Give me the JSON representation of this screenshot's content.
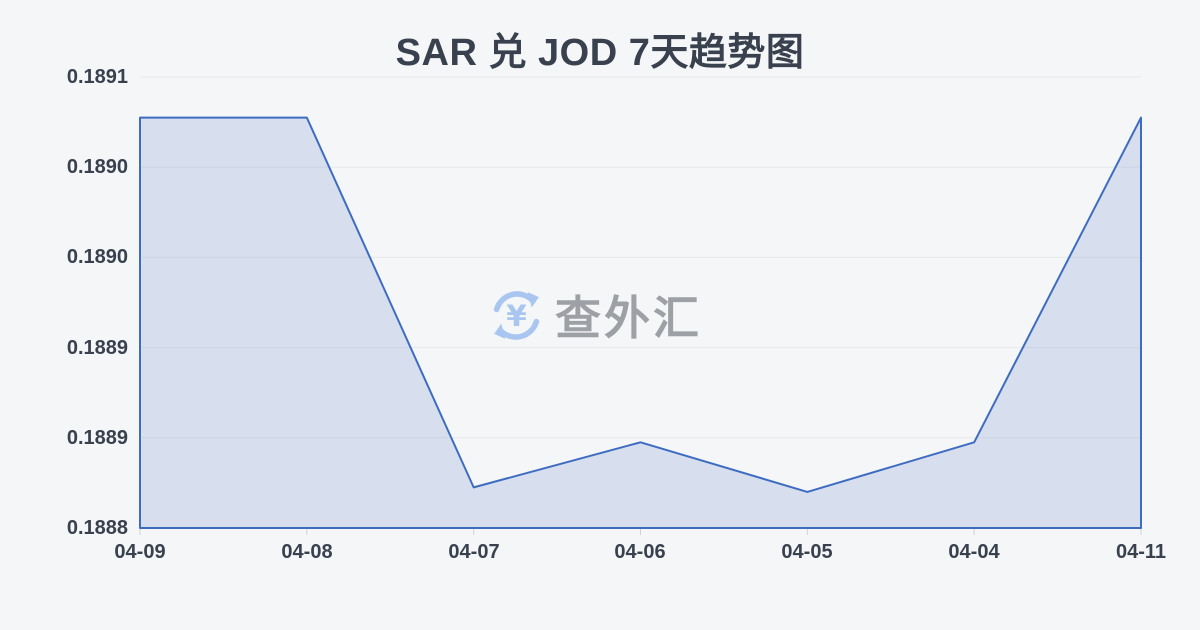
{
  "title": "SAR 兑 JOD 7天趋势图",
  "watermark": {
    "text": "查外汇",
    "icon": "currency-exchange-icon"
  },
  "colors": {
    "background": "#f5f6f8",
    "line": "#3e6cc0",
    "fill": "rgba(62,108,193,0.16)",
    "grid": "#e6e8eb",
    "tick": "#cfd2d8",
    "text_dark": "#39414f",
    "watermark_text": "#9da0a5",
    "watermark_icon": "#a9c6f0"
  },
  "chart_data": {
    "type": "area",
    "title": "SAR 兑 JOD 7天趋势图",
    "categories": [
      "04-09",
      "04-08",
      "04-07",
      "04-06",
      "04-05",
      "04-04",
      "04-11"
    ],
    "values": [
      0.189073,
      0.189073,
      0.188827,
      0.188857,
      0.188824,
      0.188857,
      0.189073
    ],
    "ylim": [
      0.1888,
      0.1891
    ],
    "y_tick_labels": [
      "0.1891",
      "0.1890",
      "0.1890",
      "0.1889",
      "0.1889",
      "0.1888"
    ],
    "xlabel": "",
    "ylabel": "",
    "grid": true,
    "legend": false
  }
}
